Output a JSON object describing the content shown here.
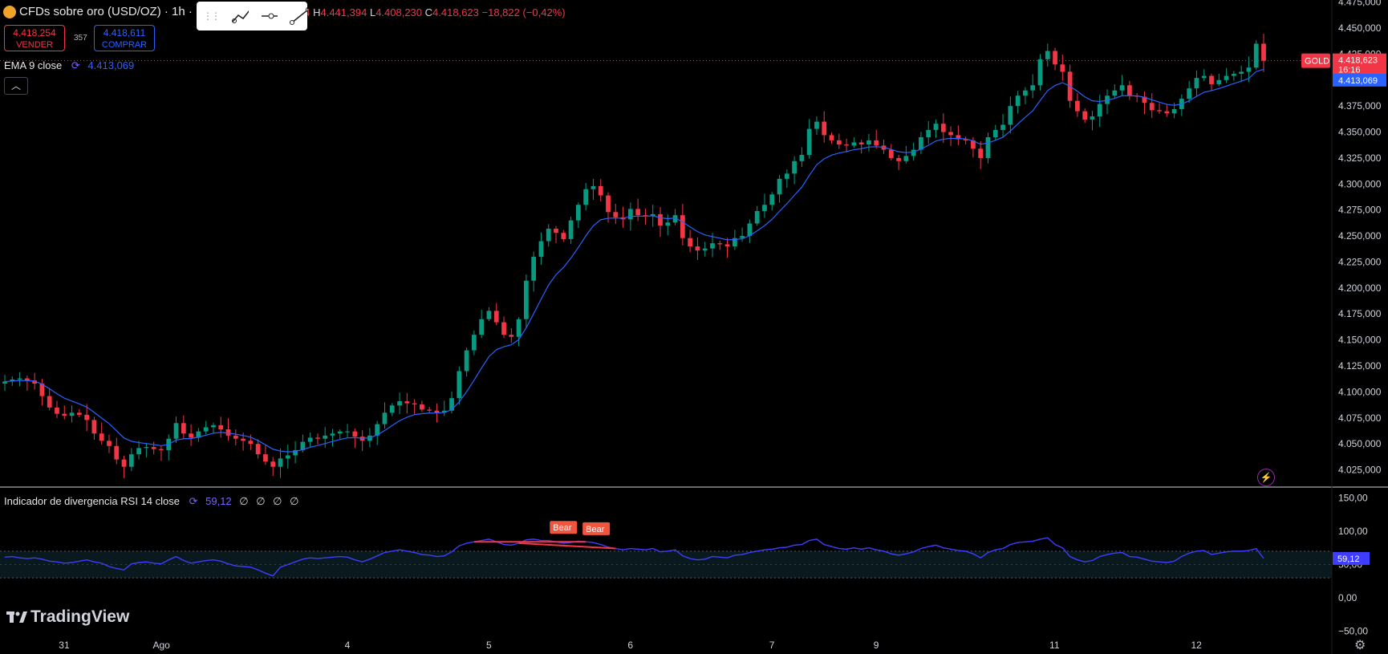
{
  "header": {
    "symbol": "CFDs sobre oro (USD/OZ) · 1h ·",
    "ohlc": {
      "o_frag": "34",
      "h_label": "H",
      "h": "4.441,394",
      "l_label": "L",
      "l": "4.408,230",
      "c_label": "C",
      "c": "4.418,623",
      "change": "−18,822 (−0,42%)"
    }
  },
  "trade": {
    "sell_price": "4.418,254",
    "sell_label": "VENDER",
    "spread": "357",
    "buy_price": "4.418,611",
    "buy_label": "COMPRAR"
  },
  "indicators": {
    "ema_label": "EMA 9 close",
    "ema_value": "4.413,069",
    "rsi_label": "Indicador de divergencia RSI 14 close",
    "rsi_value": "59,12",
    "rsi_extra": "∅ ∅ ∅ ∅"
  },
  "branding": {
    "name": "TradingView"
  },
  "colors": {
    "up": "#089981",
    "down": "#f23645",
    "ema": "#2962ff",
    "rsi": "#3f3dff",
    "bear": "#f0553e",
    "bg": "#000000"
  },
  "chart_data": {
    "type": "candlestick",
    "interval": "1h",
    "y_ticks": [
      "4.475,000",
      "4.450,000",
      "4.425,000",
      "4.400,000",
      "4.375,000",
      "4.350,000",
      "4.325,000",
      "4.300,000",
      "4.275,000",
      "4.250,000",
      "4.225,000",
      "4.200,000",
      "4.175,000",
      "4.150,000",
      "4.125,000",
      "4.100,000",
      "4.075,000",
      "4.050,000",
      "4.025,000"
    ],
    "ylim": [
      4010,
      4477
    ],
    "x_ticks": [
      "31",
      "Ago",
      "4",
      "5",
      "6",
      "7",
      "9",
      "11",
      "12"
    ],
    "x_tick_bars": [
      8,
      21,
      46,
      65,
      84,
      103,
      117,
      141,
      160
    ],
    "price_labels": {
      "symbol": "GOLD",
      "last": "4.418,623",
      "countdown": "16:16",
      "ema": "4.413,069"
    },
    "last_price": 4418.623,
    "ema_last": 4413.069,
    "closes": [
      4110,
      4112,
      4113,
      4111,
      4108,
      4096,
      4085,
      4079,
      4077,
      4080,
      4078,
      4073,
      4060,
      4053,
      4048,
      4035,
      4028,
      4040,
      4046,
      4047,
      4045,
      4044,
      4055,
      4070,
      4060,
      4056,
      4062,
      4066,
      4068,
      4064,
      4058,
      4055,
      4053,
      4050,
      4040,
      4033,
      4028,
      4036,
      4039,
      4044,
      4052,
      4056,
      4055,
      4058,
      4060,
      4062,
      4062,
      4057,
      4053,
      4058,
      4069,
      4080,
      4087,
      4091,
      4089,
      4088,
      4083,
      4082,
      4080,
      4082,
      4094,
      4120,
      4140,
      4155,
      4170,
      4178,
      4167,
      4155,
      4153,
      4170,
      4207,
      4230,
      4245,
      4257,
      4253,
      4247,
      4265,
      4280,
      4295,
      4298,
      4289,
      4273,
      4268,
      4266,
      4276,
      4270,
      4269,
      4271,
      4260,
      4263,
      4270,
      4248,
      4240,
      4236,
      4238,
      4243,
      4242,
      4240,
      4248,
      4250,
      4262,
      4274,
      4280,
      4290,
      4305,
      4310,
      4322,
      4328,
      4353,
      4360,
      4347,
      4342,
      4338,
      4337,
      4340,
      4338,
      4342,
      4337,
      4333,
      4325,
      4322,
      4327,
      4333,
      4345,
      4352,
      4358,
      4350,
      4347,
      4343,
      4342,
      4334,
      4325,
      4345,
      4352,
      4357,
      4375,
      4385,
      4390,
      4395,
      4420,
      4428,
      4415,
      4408,
      4380,
      4370,
      4362,
      4365,
      4377,
      4385,
      4390,
      4395,
      4385,
      4384,
      4378,
      4371,
      4370,
      4368,
      4372,
      4382,
      4392,
      4402,
      4404,
      4396,
      4400,
      4404,
      4406,
      4408,
      4412,
      4435,
      4418.623
    ],
    "rsi": {
      "ylim": [
        -60,
        160
      ],
      "y_ticks": [
        "150,00",
        "100,00",
        "50,00",
        "0,00",
        "−50,00"
      ],
      "band": [
        30,
        70
      ],
      "value_label": "59,12",
      "values": [
        61,
        62,
        60,
        59,
        60,
        58,
        55,
        54,
        52,
        53,
        55,
        57,
        54,
        52,
        47,
        44,
        42,
        51,
        53,
        54,
        52,
        51,
        57,
        62,
        56,
        52,
        54,
        56,
        57,
        55,
        51,
        48,
        47,
        46,
        42,
        37,
        33,
        46,
        50,
        54,
        58,
        60,
        59,
        60,
        61,
        62,
        61,
        57,
        54,
        58,
        63,
        68,
        70,
        72,
        70,
        68,
        65,
        64,
        62,
        63,
        69,
        78,
        82,
        84,
        86,
        88,
        84,
        80,
        79,
        82,
        87,
        88,
        86,
        86,
        84,
        82,
        83,
        85,
        84,
        83,
        80,
        76,
        74,
        72,
        74,
        73,
        72,
        74,
        69,
        70,
        72,
        63,
        59,
        57,
        58,
        62,
        61,
        60,
        64,
        65,
        68,
        70,
        72,
        73,
        75,
        76,
        79,
        80,
        86,
        88,
        80,
        77,
        74,
        73,
        75,
        73,
        75,
        72,
        70,
        66,
        64,
        66,
        69,
        74,
        77,
        79,
        75,
        73,
        71,
        70,
        66,
        60,
        68,
        72,
        74,
        80,
        83,
        84,
        85,
        88,
        90,
        80,
        75,
        62,
        57,
        54,
        56,
        62,
        65,
        67,
        68,
        62,
        61,
        58,
        55,
        54,
        53,
        55,
        62,
        67,
        70,
        71,
        65,
        67,
        69,
        70,
        70,
        71,
        74,
        59.12
      ],
      "divergences": [
        {
          "label": "Bear",
          "from_bar": 63,
          "to_bar": 78
        },
        {
          "label": "Bear",
          "from_bar": 69,
          "to_bar": 82
        }
      ]
    }
  }
}
